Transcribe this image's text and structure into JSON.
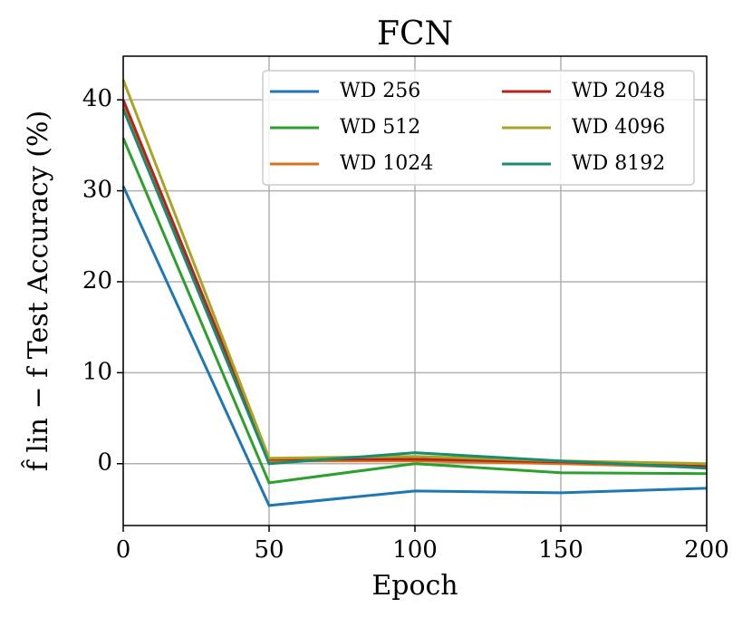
{
  "chart_data": {
    "type": "line",
    "title": "FCN",
    "x_label": "Epoch",
    "y_label": "f̂ lin − f Test Accuracy (%)",
    "x": [
      0,
      50,
      100,
      150,
      200
    ],
    "series": [
      {
        "name": "WD 256",
        "color": "#1f77b4",
        "values": [
          30.5,
          -4.6,
          -3.0,
          -3.2,
          -2.7
        ]
      },
      {
        "name": "WD 512",
        "color": "#2ca02c",
        "values": [
          35.8,
          -2.1,
          0.0,
          -1.0,
          -1.1
        ]
      },
      {
        "name": "WD 1024",
        "color": "#d9711c",
        "values": [
          39.5,
          0.3,
          0.3,
          0.0,
          -0.4
        ]
      },
      {
        "name": "WD 2048",
        "color": "#b2251f",
        "values": [
          40.0,
          0.5,
          0.5,
          0.2,
          -0.3
        ]
      },
      {
        "name": "WD 4096",
        "color": "#a9a523",
        "values": [
          42.2,
          0.6,
          0.8,
          0.3,
          0.0
        ]
      },
      {
        "name": "WD 8192",
        "color": "#1a8a70",
        "values": [
          39.0,
          0.0,
          1.2,
          0.3,
          -0.5
        ]
      }
    ],
    "xlim": [
      0,
      200
    ],
    "xticks": [
      0,
      50,
      100,
      150,
      200
    ],
    "ylim": [
      -6.8,
      44.8
    ],
    "yticks": [
      0,
      10,
      20,
      30,
      40
    ],
    "grid": true,
    "legend": "upper right",
    "legend_columns": 2
  }
}
